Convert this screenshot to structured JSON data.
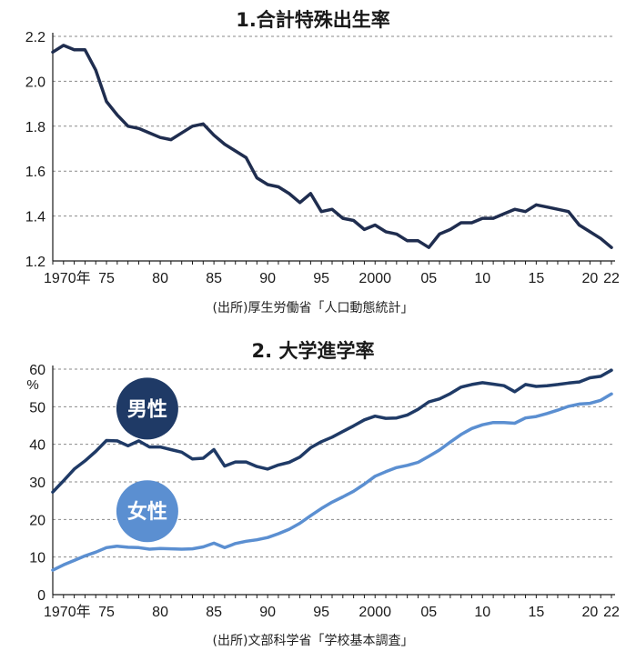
{
  "chart_data": [
    {
      "type": "line",
      "title": "1.合計特殊出生率",
      "source": "(出所)厚生労働省「人口動態統計」",
      "ylim": [
        1.2,
        2.2
      ],
      "yticks": [
        "1.2",
        "1.4",
        "1.6",
        "1.8",
        "2.0",
        "2.2"
      ],
      "ytick_values": [
        1.2,
        1.4,
        1.6,
        1.8,
        2.0,
        2.2
      ],
      "xticks": [
        {
          "year": 1970,
          "label": "1970年"
        },
        {
          "year": 1975,
          "label": "75"
        },
        {
          "year": 1980,
          "label": "80"
        },
        {
          "year": 1985,
          "label": "85"
        },
        {
          "year": 1990,
          "label": "90"
        },
        {
          "year": 1995,
          "label": "95"
        },
        {
          "year": 2000,
          "label": "2000"
        },
        {
          "year": 2005,
          "label": "05"
        },
        {
          "year": 2010,
          "label": "10"
        },
        {
          "year": 2015,
          "label": "15"
        },
        {
          "year": 2020,
          "label": "20"
        },
        {
          "year": 2022,
          "label": "22"
        }
      ],
      "grid": true,
      "color": "#1f2d4f",
      "x": [
        1970,
        1971,
        1972,
        1973,
        1974,
        1975,
        1976,
        1977,
        1978,
        1979,
        1980,
        1981,
        1982,
        1983,
        1984,
        1985,
        1986,
        1987,
        1988,
        1989,
        1990,
        1991,
        1992,
        1993,
        1994,
        1995,
        1996,
        1997,
        1998,
        1999,
        2000,
        2001,
        2002,
        2003,
        2004,
        2005,
        2006,
        2007,
        2008,
        2009,
        2010,
        2011,
        2012,
        2013,
        2014,
        2015,
        2016,
        2017,
        2018,
        2019,
        2020,
        2021,
        2022
      ],
      "values": [
        2.13,
        2.16,
        2.14,
        2.14,
        2.05,
        1.91,
        1.85,
        1.8,
        1.79,
        1.77,
        1.75,
        1.74,
        1.77,
        1.8,
        1.81,
        1.76,
        1.72,
        1.69,
        1.66,
        1.57,
        1.54,
        1.53,
        1.5,
        1.46,
        1.5,
        1.42,
        1.43,
        1.39,
        1.38,
        1.34,
        1.36,
        1.33,
        1.32,
        1.29,
        1.29,
        1.26,
        1.32,
        1.34,
        1.37,
        1.37,
        1.39,
        1.39,
        1.41,
        1.43,
        1.42,
        1.45,
        1.44,
        1.43,
        1.42,
        1.36,
        1.33,
        1.3,
        1.26
      ]
    },
    {
      "type": "line",
      "title": "2. 大学進学率",
      "source": "(出所)文部科学省「学校基本調査」",
      "ylabel": "%",
      "ylim": [
        0,
        60
      ],
      "yticks": [
        "0",
        "10",
        "20",
        "30",
        "40",
        "50",
        "60"
      ],
      "ytick_values": [
        0,
        10,
        20,
        30,
        40,
        50,
        60
      ],
      "xticks": [
        {
          "year": 1970,
          "label": "1970年"
        },
        {
          "year": 1975,
          "label": "75"
        },
        {
          "year": 1980,
          "label": "80"
        },
        {
          "year": 1985,
          "label": "85"
        },
        {
          "year": 1990,
          "label": "90"
        },
        {
          "year": 1995,
          "label": "95"
        },
        {
          "year": 2000,
          "label": "2000"
        },
        {
          "year": 2005,
          "label": "05"
        },
        {
          "year": 2010,
          "label": "10"
        },
        {
          "year": 2015,
          "label": "15"
        },
        {
          "year": 2020,
          "label": "20"
        },
        {
          "year": 2022,
          "label": "22"
        }
      ],
      "grid": true,
      "x": [
        1970,
        1971,
        1972,
        1973,
        1974,
        1975,
        1976,
        1977,
        1978,
        1979,
        1980,
        1981,
        1982,
        1983,
        1984,
        1985,
        1986,
        1987,
        1988,
        1989,
        1990,
        1991,
        1992,
        1993,
        1994,
        1995,
        1996,
        1997,
        1998,
        1999,
        2000,
        2001,
        2002,
        2003,
        2004,
        2005,
        2006,
        2007,
        2008,
        2009,
        2010,
        2011,
        2012,
        2013,
        2014,
        2015,
        2016,
        2017,
        2018,
        2019,
        2020,
        2021,
        2022
      ],
      "series": [
        {
          "name": "男性",
          "color": "#1f3a66",
          "label_year": 1978.8,
          "label_value": 49.5,
          "values": [
            27.3,
            30.3,
            33.4,
            35.6,
            38.1,
            41.0,
            40.9,
            39.6,
            40.9,
            39.3,
            39.3,
            38.6,
            37.9,
            36.1,
            36.3,
            38.6,
            34.2,
            35.3,
            35.3,
            34.1,
            33.4,
            34.5,
            35.2,
            36.6,
            39.1,
            40.7,
            41.9,
            43.4,
            44.9,
            46.5,
            47.5,
            46.9,
            47.0,
            47.8,
            49.3,
            51.3,
            52.1,
            53.5,
            55.2,
            55.9,
            56.4,
            56.0,
            55.6,
            54.0,
            55.9,
            55.4,
            55.6,
            55.9,
            56.3,
            56.6,
            57.7,
            58.1,
            59.7
          ]
        },
        {
          "name": "女性",
          "color": "#5b8fd1",
          "label_year": 1978.8,
          "label_value": 22.2,
          "values": [
            6.5,
            7.9,
            9.1,
            10.3,
            11.3,
            12.5,
            12.9,
            12.6,
            12.5,
            12.1,
            12.3,
            12.2,
            12.1,
            12.2,
            12.7,
            13.7,
            12.5,
            13.6,
            14.2,
            14.6,
            15.2,
            16.2,
            17.4,
            19.0,
            21.0,
            22.9,
            24.6,
            26.0,
            27.5,
            29.4,
            31.5,
            32.7,
            33.8,
            34.4,
            35.2,
            36.8,
            38.5,
            40.6,
            42.6,
            44.2,
            45.2,
            45.8,
            45.8,
            45.6,
            47.0,
            47.4,
            48.2,
            49.1,
            50.1,
            50.7,
            50.9,
            51.7,
            53.4
          ]
        }
      ]
    }
  ]
}
